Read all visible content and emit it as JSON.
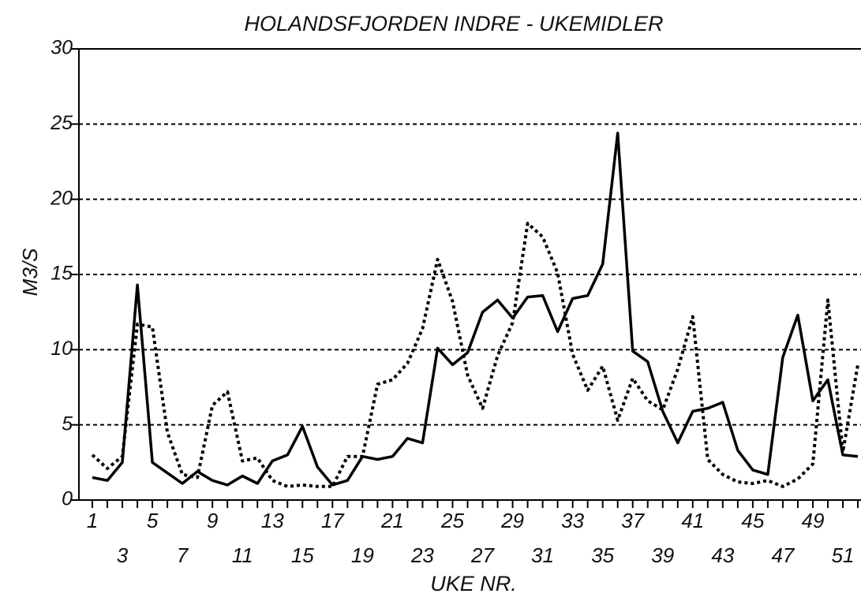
{
  "chart_data": {
    "type": "line",
    "title": "HOLANDSFJORDEN INDRE - UKEMIDLER",
    "y_label": "M3/S",
    "x_label": "UKE NR.",
    "categories": [
      "1",
      null,
      "3",
      null,
      "5",
      null,
      "7",
      null,
      "9",
      null,
      "11",
      null,
      "13",
      null,
      "15",
      null,
      "17",
      null,
      "19",
      null,
      "21",
      null,
      "23",
      null,
      "25",
      null,
      "27",
      null,
      "29",
      null,
      "31",
      null,
      "33",
      null,
      "35",
      null,
      "37",
      null,
      "39",
      null,
      "41",
      null,
      "43",
      null,
      "45",
      null,
      "47",
      null,
      "49",
      null,
      "51",
      null
    ],
    "series": [
      {
        "color": "#000000",
        "line_style": "solid",
        "values": [
          1.5,
          1.3,
          2.5,
          14.3,
          2.5,
          1.8,
          1.1,
          1.9,
          1.3,
          1.0,
          1.6,
          1.1,
          2.6,
          3.0,
          4.9,
          2.2,
          1.0,
          1.3,
          2.9,
          2.7,
          2.9,
          4.1,
          3.8,
          10.1,
          9.0,
          9.8,
          12.5,
          13.3,
          12.1,
          13.5,
          13.6,
          11.2,
          13.4,
          13.6,
          15.7,
          24.4,
          9.9,
          9.2,
          5.9,
          3.8,
          5.9,
          6.1,
          6.5,
          3.3,
          2.0,
          1.7,
          9.5,
          12.3,
          6.6,
          8.0,
          3.0,
          2.9
        ]
      },
      {
        "color": "#000000",
        "line_style": "dotted",
        "values": [
          3.0,
          2.1,
          2.9,
          11.7,
          11.5,
          4.5,
          1.7,
          1.5,
          6.3,
          7.2,
          2.6,
          2.8,
          1.3,
          0.9,
          1.0,
          0.9,
          0.9,
          2.9,
          2.9,
          7.7,
          8.0,
          9.1,
          11.4,
          16.0,
          13.2,
          8.3,
          6.1,
          9.6,
          11.8,
          18.4,
          17.5,
          15.1,
          9.7,
          7.3,
          8.9,
          5.3,
          8.1,
          6.6,
          6.0,
          8.7,
          12.2,
          2.7,
          1.7,
          1.2,
          1.1,
          1.3,
          0.9,
          1.4,
          2.4,
          13.3,
          3.2,
          9.0
        ]
      }
    ],
    "ylim": [
      0,
      30
    ],
    "yticks": [
      0,
      5,
      10,
      15,
      20,
      25,
      30
    ],
    "grid": true
  }
}
